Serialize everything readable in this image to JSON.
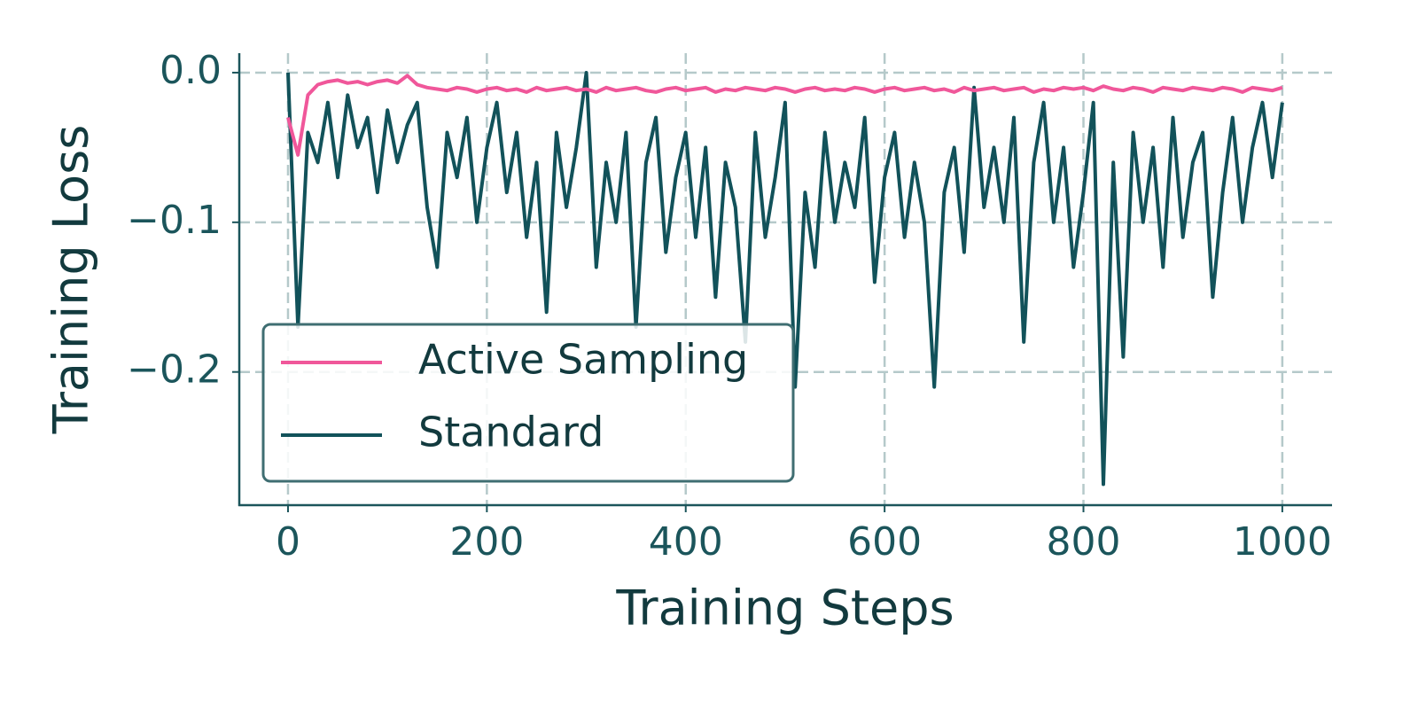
{
  "chart_data": {
    "type": "line",
    "xlabel": "Training Steps",
    "ylabel": "Training Loss",
    "x": [
      0,
      10,
      20,
      30,
      40,
      50,
      60,
      70,
      80,
      90,
      100,
      110,
      120,
      130,
      140,
      150,
      160,
      170,
      180,
      190,
      200,
      210,
      220,
      230,
      240,
      250,
      260,
      270,
      280,
      290,
      300,
      310,
      320,
      330,
      340,
      350,
      360,
      370,
      380,
      390,
      400,
      410,
      420,
      430,
      440,
      450,
      460,
      470,
      480,
      490,
      500,
      510,
      520,
      530,
      540,
      550,
      560,
      570,
      580,
      590,
      600,
      610,
      620,
      630,
      640,
      650,
      660,
      670,
      680,
      690,
      700,
      710,
      720,
      730,
      740,
      750,
      760,
      770,
      780,
      790,
      800,
      810,
      820,
      830,
      840,
      850,
      860,
      870,
      880,
      890,
      900,
      910,
      920,
      930,
      940,
      950,
      960,
      970,
      980,
      990,
      1000
    ],
    "series": [
      {
        "name": "Active Sampling",
        "color": "#f0579a",
        "values": [
          -0.03,
          -0.055,
          -0.015,
          -0.008,
          -0.006,
          -0.005,
          -0.007,
          -0.006,
          -0.008,
          -0.006,
          -0.005,
          -0.007,
          -0.002,
          -0.008,
          -0.01,
          -0.011,
          -0.012,
          -0.01,
          -0.011,
          -0.013,
          -0.011,
          -0.01,
          -0.012,
          -0.011,
          -0.013,
          -0.01,
          -0.012,
          -0.011,
          -0.01,
          -0.012,
          -0.011,
          -0.013,
          -0.01,
          -0.012,
          -0.011,
          -0.01,
          -0.012,
          -0.013,
          -0.011,
          -0.01,
          -0.012,
          -0.011,
          -0.01,
          -0.013,
          -0.011,
          -0.012,
          -0.01,
          -0.011,
          -0.012,
          -0.01,
          -0.011,
          -0.013,
          -0.011,
          -0.01,
          -0.012,
          -0.011,
          -0.012,
          -0.01,
          -0.011,
          -0.013,
          -0.011,
          -0.01,
          -0.012,
          -0.011,
          -0.01,
          -0.012,
          -0.011,
          -0.013,
          -0.01,
          -0.012,
          -0.011,
          -0.01,
          -0.012,
          -0.011,
          -0.01,
          -0.013,
          -0.011,
          -0.012,
          -0.01,
          -0.011,
          -0.01,
          -0.012,
          -0.009,
          -0.011,
          -0.012,
          -0.01,
          -0.011,
          -0.013,
          -0.01,
          -0.011,
          -0.012,
          -0.01,
          -0.011,
          -0.012,
          -0.01,
          -0.011,
          -0.013,
          -0.01,
          -0.011,
          -0.012,
          -0.01
        ]
      },
      {
        "name": "Standard",
        "color": "#12525a",
        "values": [
          0.0,
          -0.17,
          -0.04,
          -0.06,
          -0.02,
          -0.07,
          -0.015,
          -0.05,
          -0.03,
          -0.08,
          -0.025,
          -0.06,
          -0.035,
          -0.02,
          -0.09,
          -0.13,
          -0.04,
          -0.07,
          -0.03,
          -0.1,
          -0.05,
          -0.02,
          -0.08,
          -0.04,
          -0.11,
          -0.06,
          -0.16,
          -0.04,
          -0.09,
          -0.05,
          0.0,
          -0.13,
          -0.06,
          -0.1,
          -0.04,
          -0.17,
          -0.06,
          -0.03,
          -0.12,
          -0.07,
          -0.04,
          -0.11,
          -0.05,
          -0.15,
          -0.06,
          -0.09,
          -0.18,
          -0.04,
          -0.11,
          -0.07,
          -0.02,
          -0.21,
          -0.08,
          -0.13,
          -0.04,
          -0.1,
          -0.06,
          -0.09,
          -0.03,
          -0.14,
          -0.07,
          -0.04,
          -0.11,
          -0.06,
          -0.1,
          -0.21,
          -0.08,
          -0.05,
          -0.12,
          -0.01,
          -0.09,
          -0.05,
          -0.1,
          -0.03,
          -0.18,
          -0.06,
          -0.02,
          -0.1,
          -0.05,
          -0.13,
          -0.08,
          -0.02,
          -0.275,
          -0.06,
          -0.19,
          -0.04,
          -0.1,
          -0.05,
          -0.13,
          -0.03,
          -0.11,
          -0.06,
          -0.04,
          -0.15,
          -0.08,
          -0.03,
          -0.1,
          -0.05,
          -0.02,
          -0.07,
          -0.02
        ]
      }
    ],
    "xlim": [
      -49,
      1050
    ],
    "ylim": [
      -0.289,
      0.013
    ],
    "xticks": [
      0,
      200,
      400,
      600,
      800,
      1000
    ],
    "yticks": [
      {
        "value": 0,
        "label": "0.0"
      },
      {
        "value": -0.1,
        "label": "−0.1"
      },
      {
        "value": -0.2,
        "label": "−0.2"
      }
    ],
    "grid": true,
    "legend": "lower left"
  }
}
